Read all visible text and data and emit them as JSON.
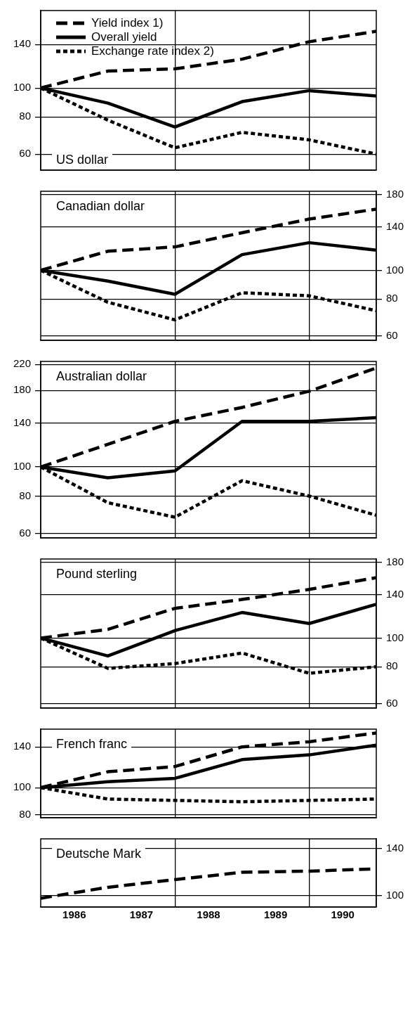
{
  "chart_data": [
    {
      "type": "line",
      "title": "US dollar",
      "log": true,
      "grid": true,
      "legend": "top left",
      "marker": "none",
      "tick_labels": "y",
      "x": [
        1986,
        1987,
        1988,
        1989,
        1990,
        1991
      ],
      "xlim": [
        1986,
        1991
      ],
      "xticks": [
        {
          "value": 1988,
          "label": null
        },
        {
          "value": 1990,
          "label": null
        }
      ],
      "ylim": [
        53,
        182
      ],
      "yticks": [
        60,
        80,
        100,
        140
      ],
      "series": [
        {
          "name": "Yield index 1)",
          "color": "#000000",
          "line_style": "dashed",
          "values": [
            100,
            114,
            116,
            125,
            143,
            155
          ]
        },
        {
          "name": "Overall yield",
          "color": "#000000",
          "line_style": "solid",
          "values": [
            100,
            89,
            74,
            90,
            98,
            94
          ]
        },
        {
          "name": "Exchange rate index 2)",
          "color": "#000000",
          "line_style": "dotted",
          "values": [
            100,
            78,
            63,
            71,
            67,
            60
          ]
        }
      ]
    },
    {
      "type": "line",
      "title": "Canadian dollar",
      "log": "y2",
      "grid": true,
      "marker": "none",
      "tick_labels": "y",
      "x": [
        1986,
        1987,
        1988,
        1989,
        1990,
        1991
      ],
      "xlim": [
        1986,
        1991
      ],
      "xticks": [
        {
          "value": 1988,
          "label": null
        },
        {
          "value": 1990,
          "label": null
        }
      ],
      "y2lim": [
        58,
        185
      ],
      "y2ticks": [
        60,
        80,
        100,
        140,
        180
      ],
      "series": [
        {
          "color": "#000000",
          "line_style": "dashed",
          "axis": "y2",
          "values": [
            100,
            116,
            120,
            134,
            149,
            161
          ]
        },
        {
          "color": "#000000",
          "line_style": "solid",
          "axis": "y2",
          "values": [
            100,
            92,
            83,
            113,
            124,
            117
          ]
        },
        {
          "color": "#000000",
          "line_style": "dotted",
          "axis": "y2",
          "values": [
            100,
            78,
            68,
            84,
            82,
            73
          ]
        }
      ]
    },
    {
      "type": "line",
      "title": "Australian dollar",
      "log": true,
      "grid": true,
      "marker": "none",
      "tick_labels": "y",
      "x": [
        1986,
        1987,
        1988,
        1989,
        1990,
        1991
      ],
      "xlim": [
        1986,
        1991
      ],
      "xticks": [
        {
          "value": 1988,
          "label": null
        },
        {
          "value": 1990,
          "label": null
        }
      ],
      "ylim": [
        58,
        225
      ],
      "yticks": [
        60,
        80,
        100,
        140,
        180,
        220
      ],
      "series": [
        {
          "color": "#000000",
          "line_style": "dashed",
          "values": [
            100,
            119,
            142,
            158,
            179,
            214
          ]
        },
        {
          "color": "#000000",
          "line_style": "solid",
          "values": [
            100,
            92,
            97,
            142,
            142,
            146
          ]
        },
        {
          "color": "#000000",
          "line_style": "dotted",
          "values": [
            100,
            76,
            68,
            90,
            80,
            69
          ]
        }
      ]
    },
    {
      "type": "line",
      "title": "Pound sterling",
      "log": "y2",
      "grid": true,
      "marker": "none",
      "tick_labels": "y",
      "x": [
        1986,
        1987,
        1988,
        1989,
        1990,
        1991
      ],
      "xlim": [
        1986,
        1991
      ],
      "xticks": [
        {
          "value": 1988,
          "label": null
        },
        {
          "value": 1990,
          "label": null
        }
      ],
      "y2lim": [
        58,
        185
      ],
      "y2ticks": [
        60,
        80,
        100,
        140,
        180
      ],
      "series": [
        {
          "color": "#000000",
          "line_style": "dashed",
          "axis": "y2",
          "values": [
            100,
            107,
            126,
            135,
            146,
            160
          ]
        },
        {
          "color": "#000000",
          "line_style": "solid",
          "axis": "y2",
          "values": [
            100,
            87,
            106,
            122,
            112,
            130
          ]
        },
        {
          "color": "#000000",
          "line_style": "dotted",
          "axis": "y2",
          "values": [
            100,
            79,
            82,
            89,
            76,
            80
          ]
        }
      ]
    },
    {
      "type": "line",
      "title": "French franc",
      "log": true,
      "grid": true,
      "marker": "none",
      "tick_labels": "y",
      "x": [
        1986,
        1987,
        1988,
        1989,
        1990,
        1991
      ],
      "xlim": [
        1986,
        1991
      ],
      "xticks": [
        {
          "value": 1988,
          "label": null
        },
        {
          "value": 1990,
          "label": null
        }
      ],
      "ylim": [
        78,
        162
      ],
      "yticks": [
        80,
        100,
        140
      ],
      "series": [
        {
          "color": "#000000",
          "line_style": "dashed",
          "values": [
            100,
            114,
            119,
            140,
            146,
            157
          ]
        },
        {
          "color": "#000000",
          "line_style": "solid",
          "values": [
            100,
            105,
            108,
            126,
            131,
            142
          ]
        },
        {
          "color": "#000000",
          "line_style": "dotted",
          "values": [
            100,
            91,
            90,
            89,
            90,
            91
          ]
        }
      ]
    },
    {
      "type": "line",
      "title": "Deutsche Mark",
      "log": "y2",
      "grid": true,
      "marker": "none",
      "x": [
        1986,
        1987,
        1988,
        1989,
        1990,
        1991
      ],
      "xlim": [
        1986,
        1991
      ],
      "xticks": [
        {
          "value": 1986.5,
          "label": "1986"
        },
        {
          "value": 1987.5,
          "label": "1987"
        },
        {
          "value": 1988,
          "label": null
        },
        {
          "value": 1988.5,
          "label": "1988"
        },
        {
          "value": 1989.5,
          "label": "1989"
        },
        {
          "value": 1990,
          "label": null
        },
        {
          "value": 1990.5,
          "label": "1990"
        }
      ],
      "y2lim": [
        92,
        150
      ],
      "y2ticks": [
        100,
        140
      ],
      "series": [
        {
          "color": "#000000",
          "line_style": "dashed",
          "axis": "y2",
          "values": [
            98,
            106,
            112,
            118,
            119,
            121
          ]
        }
      ]
    }
  ]
}
